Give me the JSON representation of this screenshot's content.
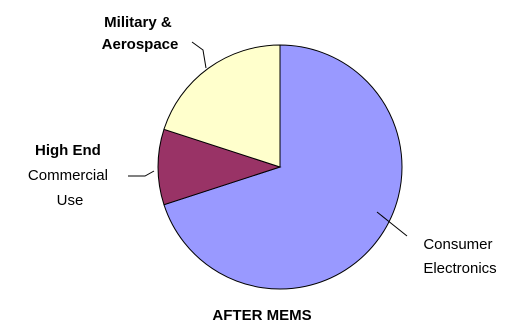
{
  "chart_data": {
    "type": "pie",
    "title": "AFTER MEMS",
    "slices": [
      {
        "label": "Consumer Electronics",
        "value": 70,
        "color": "#9999ff"
      },
      {
        "label": "High End Commercial Use",
        "value": 10,
        "color": "#993366"
      },
      {
        "label": "Military & Aerospace",
        "value": 20,
        "color": "#ffffcc"
      }
    ],
    "start_angle_deg": 0,
    "direction": "clockwise",
    "legend": "none",
    "outline_color": "#000000"
  }
}
